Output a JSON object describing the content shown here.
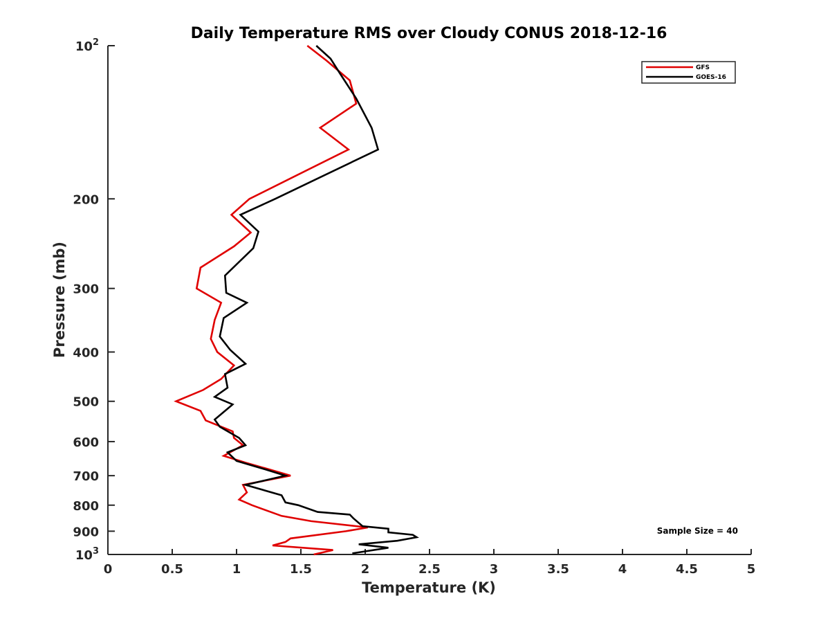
{
  "chart_data": {
    "type": "line",
    "title": "Daily Temperature RMS over Cloudy CONUS 2018-12-16",
    "xlabel": "Temperature (K)",
    "ylabel": "Pressure (mb)",
    "xlim": [
      0,
      5
    ],
    "ylim": [
      100,
      1000
    ],
    "y_scale": "log",
    "y_reversed": true,
    "x_ticks": [
      "0",
      "0.5",
      "1",
      "1.5",
      "2",
      "2.5",
      "3",
      "3.5",
      "4",
      "4.5",
      "5"
    ],
    "x_tick_values": [
      0,
      0.5,
      1,
      1.5,
      2,
      2.5,
      3,
      3.5,
      4,
      4.5,
      5
    ],
    "y_tick_values": [
      100,
      200,
      300,
      400,
      500,
      600,
      700,
      800,
      900,
      1000
    ],
    "y_ticks": [
      {
        "base": "10",
        "exp": "2"
      },
      {
        "base": "200",
        "exp": ""
      },
      {
        "base": "300",
        "exp": ""
      },
      {
        "base": "400",
        "exp": ""
      },
      {
        "base": "500",
        "exp": ""
      },
      {
        "base": "600",
        "exp": ""
      },
      {
        "base": "700",
        "exp": ""
      },
      {
        "base": "800",
        "exp": ""
      },
      {
        "base": "900",
        "exp": ""
      },
      {
        "base": "10",
        "exp": "3"
      }
    ],
    "annotation": "Sample Size = 40",
    "legend_position": "top-right",
    "grid": false,
    "series": [
      {
        "name": "GFS",
        "color": "#e00000",
        "x": [
          1.55,
          1.7,
          1.88,
          1.93,
          1.65,
          1.87,
          1.1,
          0.96,
          1.11,
          0.98,
          0.72,
          0.69,
          0.88,
          0.83,
          0.8,
          0.85,
          0.98,
          0.88,
          0.74,
          0.53,
          0.72,
          0.76,
          0.97,
          0.98,
          1.05,
          0.9,
          1.07,
          1.25,
          1.42,
          1.05,
          1.08,
          1.02,
          1.12,
          1.35,
          1.58,
          2.02,
          1.85,
          1.42,
          1.38,
          1.28,
          1.75,
          1.6
        ],
        "y": [
          100,
          107,
          117,
          130,
          145,
          160,
          200,
          215,
          233,
          248,
          273,
          300,
          320,
          346,
          377,
          400,
          425,
          452,
          475,
          500,
          522,
          545,
          573,
          590,
          610,
          640,
          660,
          680,
          700,
          730,
          755,
          780,
          800,
          840,
          860,
          885,
          900,
          930,
          945,
          960,
          980,
          1000
        ]
      },
      {
        "name": "GOES-16",
        "color": "#000000",
        "x": [
          1.62,
          1.73,
          1.8,
          1.93,
          2.05,
          2.1,
          1.3,
          1.03,
          1.17,
          1.13,
          0.91,
          0.92,
          1.08,
          0.9,
          0.87,
          0.95,
          1.07,
          0.91,
          0.93,
          0.83,
          0.97,
          0.83,
          0.87,
          1.02,
          1.07,
          0.93,
          1.0,
          1.22,
          1.38,
          1.07,
          1.35,
          1.38,
          1.48,
          1.63,
          1.88,
          1.91,
          1.98,
          2.18,
          2.18,
          2.37,
          2.4,
          2.25,
          1.95,
          2.18,
          1.9
        ],
        "y": [
          100,
          106,
          113,
          127,
          145,
          160,
          200,
          215,
          232,
          250,
          283,
          306,
          320,
          343,
          373,
          396,
          422,
          442,
          470,
          490,
          507,
          543,
          561,
          590,
          610,
          630,
          655,
          680,
          700,
          730,
          765,
          790,
          800,
          825,
          835,
          850,
          880,
          890,
          905,
          915,
          925,
          940,
          955,
          970,
          995
        ]
      }
    ]
  }
}
